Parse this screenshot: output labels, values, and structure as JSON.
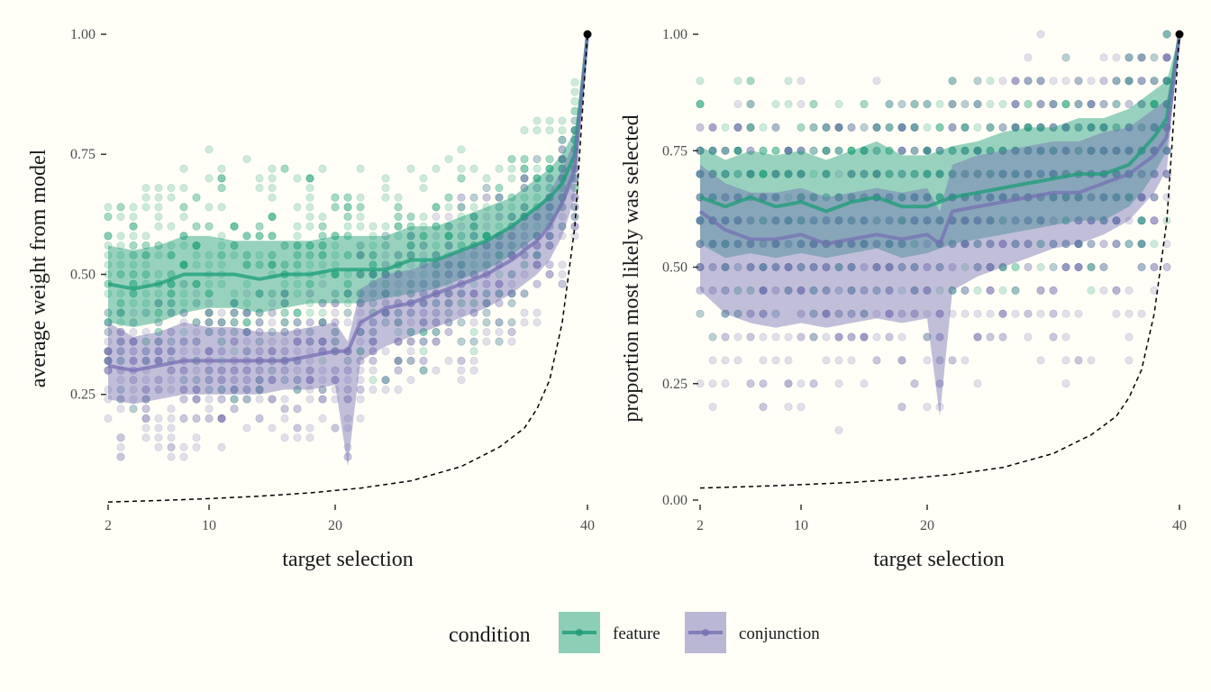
{
  "colors": {
    "feature": "#1b9e77",
    "conjunction": "#7570b3",
    "reference": "#000000"
  },
  "legend": {
    "title": "condition",
    "placement": "bottom",
    "items": [
      "feature",
      "conjunction"
    ]
  },
  "chart_data": [
    {
      "type": "scatter",
      "xlabel": "target selection",
      "ylabel": "average weight from model",
      "xlim": [
        2,
        40
      ],
      "ylim": [
        0.03,
        1.0
      ],
      "xticks": [
        2,
        10,
        20,
        40
      ],
      "yticks": [
        0.25,
        0.5,
        0.75,
        1.0
      ],
      "ytick_labels": [
        "0.25",
        "0.50",
        "0.75",
        "1.00"
      ],
      "grid": false,
      "reference_line": {
        "style": "dashed",
        "x": [
          2,
          6,
          10,
          14,
          18,
          22,
          26,
          30,
          33,
          35,
          36,
          37,
          38,
          39,
          40
        ],
        "y": [
          0.026,
          0.029,
          0.033,
          0.038,
          0.045,
          0.055,
          0.07,
          0.1,
          0.14,
          0.18,
          0.22,
          0.28,
          0.4,
          0.6,
          1.0
        ]
      },
      "series": [
        {
          "name": "feature",
          "x": [
            2,
            4,
            6,
            8,
            10,
            12,
            14,
            16,
            18,
            20,
            22,
            24,
            26,
            28,
            30,
            32,
            34,
            36,
            37,
            38,
            39,
            40
          ],
          "mean": [
            0.48,
            0.47,
            0.48,
            0.5,
            0.5,
            0.5,
            0.49,
            0.5,
            0.5,
            0.51,
            0.51,
            0.51,
            0.53,
            0.53,
            0.55,
            0.57,
            0.6,
            0.64,
            0.66,
            0.69,
            0.75,
            1.0
          ],
          "lower": [
            0.4,
            0.39,
            0.4,
            0.42,
            0.43,
            0.43,
            0.42,
            0.43,
            0.44,
            0.44,
            0.44,
            0.45,
            0.46,
            0.47,
            0.49,
            0.51,
            0.54,
            0.58,
            0.6,
            0.64,
            0.7,
            1.0
          ],
          "upper": [
            0.56,
            0.55,
            0.56,
            0.58,
            0.58,
            0.57,
            0.57,
            0.57,
            0.57,
            0.58,
            0.58,
            0.58,
            0.6,
            0.6,
            0.62,
            0.64,
            0.66,
            0.7,
            0.72,
            0.75,
            0.8,
            1.0
          ],
          "scatter_lower": [
            0.18,
            0.19,
            0.2,
            0.22,
            0.22,
            0.22,
            0.22,
            0.23,
            0.24,
            0.25,
            0.26,
            0.27,
            0.28,
            0.3,
            0.32,
            0.34,
            0.38,
            0.45,
            0.5,
            0.55,
            0.6,
            1.0
          ],
          "scatter_upper": [
            0.68,
            0.66,
            0.68,
            0.72,
            0.72,
            0.72,
            0.74,
            0.74,
            0.72,
            0.72,
            0.72,
            0.72,
            0.74,
            0.74,
            0.76,
            0.78,
            0.8,
            0.82,
            0.84,
            0.86,
            0.9,
            1.0
          ]
        },
        {
          "name": "conjunction",
          "x": [
            2,
            4,
            6,
            8,
            10,
            12,
            14,
            16,
            18,
            20,
            21,
            22,
            24,
            26,
            28,
            30,
            32,
            34,
            36,
            37,
            38,
            39,
            40
          ],
          "mean": [
            0.31,
            0.3,
            0.31,
            0.32,
            0.32,
            0.32,
            0.32,
            0.32,
            0.33,
            0.34,
            0.34,
            0.4,
            0.43,
            0.44,
            0.46,
            0.48,
            0.5,
            0.53,
            0.57,
            0.6,
            0.65,
            0.72,
            1.0
          ],
          "lower": [
            0.24,
            0.23,
            0.24,
            0.25,
            0.25,
            0.25,
            0.25,
            0.26,
            0.26,
            0.27,
            0.1,
            0.32,
            0.35,
            0.37,
            0.39,
            0.41,
            0.43,
            0.46,
            0.5,
            0.53,
            0.58,
            0.66,
            1.0
          ],
          "upper": [
            0.4,
            0.37,
            0.38,
            0.4,
            0.39,
            0.39,
            0.38,
            0.38,
            0.39,
            0.4,
            0.36,
            0.47,
            0.5,
            0.51,
            0.53,
            0.55,
            0.57,
            0.6,
            0.64,
            0.67,
            0.72,
            0.78,
            1.0
          ],
          "scatter_lower": [
            0.12,
            0.13,
            0.13,
            0.12,
            0.14,
            0.15,
            0.15,
            0.15,
            0.16,
            0.17,
            0.1,
            0.2,
            0.22,
            0.24,
            0.26,
            0.28,
            0.3,
            0.32,
            0.36,
            0.4,
            0.45,
            0.5,
            1.0
          ],
          "scatter_upper": [
            0.44,
            0.44,
            0.45,
            0.46,
            0.46,
            0.46,
            0.46,
            0.47,
            0.48,
            0.5,
            0.46,
            0.58,
            0.6,
            0.62,
            0.64,
            0.66,
            0.68,
            0.7,
            0.72,
            0.74,
            0.78,
            0.84,
            1.0
          ]
        }
      ]
    },
    {
      "type": "scatter",
      "xlabel": "target selection",
      "ylabel": "proportion most likely was selected",
      "xlim": [
        2,
        40
      ],
      "ylim": [
        0.0,
        1.0
      ],
      "xticks": [
        2,
        10,
        20,
        40
      ],
      "yticks": [
        0.0,
        0.25,
        0.5,
        0.75,
        1.0
      ],
      "ytick_labels": [
        "0.00",
        "0.25",
        "0.50",
        "0.75",
        "1.00"
      ],
      "grid": false,
      "reference_line": {
        "style": "dashed",
        "x": [
          2,
          6,
          10,
          14,
          18,
          22,
          26,
          30,
          33,
          35,
          36,
          37,
          38,
          39,
          40
        ],
        "y": [
          0.026,
          0.029,
          0.033,
          0.038,
          0.045,
          0.055,
          0.07,
          0.1,
          0.14,
          0.18,
          0.22,
          0.28,
          0.4,
          0.6,
          1.0
        ]
      },
      "series": [
        {
          "name": "feature",
          "x": [
            2,
            4,
            6,
            8,
            10,
            12,
            14,
            16,
            18,
            20,
            22,
            24,
            26,
            28,
            30,
            32,
            34,
            36,
            37,
            38,
            39,
            40
          ],
          "mean": [
            0.65,
            0.63,
            0.65,
            0.63,
            0.64,
            0.62,
            0.64,
            0.65,
            0.63,
            0.63,
            0.65,
            0.66,
            0.67,
            0.68,
            0.69,
            0.7,
            0.7,
            0.72,
            0.75,
            0.78,
            0.82,
            1.0
          ],
          "lower": [
            0.55,
            0.52,
            0.53,
            0.52,
            0.53,
            0.52,
            0.53,
            0.54,
            0.52,
            0.53,
            0.55,
            0.56,
            0.57,
            0.58,
            0.59,
            0.6,
            0.6,
            0.63,
            0.66,
            0.7,
            0.75,
            1.0
          ],
          "upper": [
            0.76,
            0.73,
            0.75,
            0.74,
            0.75,
            0.73,
            0.75,
            0.77,
            0.74,
            0.74,
            0.76,
            0.77,
            0.79,
            0.8,
            0.8,
            0.82,
            0.82,
            0.84,
            0.86,
            0.88,
            0.9,
            1.0
          ],
          "scatter_lower": [
            0.4,
            0.38,
            0.38,
            0.38,
            0.4,
            0.38,
            0.38,
            0.38,
            0.4,
            0.4,
            0.42,
            0.42,
            0.42,
            0.45,
            0.45,
            0.45,
            0.48,
            0.5,
            0.52,
            0.55,
            0.6,
            1.0
          ],
          "scatter_upper": [
            0.9,
            0.88,
            0.9,
            0.88,
            0.9,
            0.88,
            0.88,
            0.9,
            0.88,
            0.88,
            0.9,
            0.9,
            0.92,
            0.93,
            0.94,
            0.95,
            0.95,
            0.96,
            0.97,
            0.98,
            1.0,
            1.0
          ]
        },
        {
          "name": "conjunction",
          "x": [
            2,
            4,
            6,
            8,
            10,
            12,
            14,
            16,
            18,
            20,
            21,
            22,
            24,
            26,
            28,
            30,
            32,
            34,
            36,
            37,
            38,
            39,
            40
          ],
          "mean": [
            0.62,
            0.58,
            0.56,
            0.56,
            0.57,
            0.55,
            0.56,
            0.57,
            0.56,
            0.57,
            0.55,
            0.62,
            0.63,
            0.64,
            0.65,
            0.66,
            0.66,
            0.68,
            0.7,
            0.72,
            0.74,
            0.78,
            1.0
          ],
          "lower": [
            0.45,
            0.4,
            0.38,
            0.37,
            0.38,
            0.37,
            0.38,
            0.39,
            0.38,
            0.39,
            0.18,
            0.45,
            0.48,
            0.5,
            0.52,
            0.54,
            0.55,
            0.57,
            0.6,
            0.63,
            0.66,
            0.71,
            1.0
          ],
          "upper": [
            0.72,
            0.68,
            0.66,
            0.66,
            0.67,
            0.65,
            0.66,
            0.67,
            0.66,
            0.67,
            0.62,
            0.72,
            0.74,
            0.75,
            0.76,
            0.77,
            0.77,
            0.79,
            0.8,
            0.82,
            0.84,
            0.86,
            1.0
          ],
          "scatter_lower": [
            0.18,
            0.16,
            0.15,
            0.16,
            0.18,
            0.16,
            0.16,
            0.17,
            0.18,
            0.18,
            0.12,
            0.2,
            0.22,
            0.22,
            0.24,
            0.25,
            0.26,
            0.28,
            0.3,
            0.35,
            0.4,
            0.45,
            1.0
          ],
          "scatter_upper": [
            0.85,
            0.82,
            0.82,
            0.82,
            0.84,
            0.82,
            0.82,
            0.84,
            0.84,
            0.85,
            0.8,
            0.86,
            0.88,
            0.9,
            0.92,
            0.92,
            0.93,
            0.94,
            0.95,
            0.96,
            0.97,
            0.98,
            1.0
          ]
        }
      ]
    }
  ]
}
